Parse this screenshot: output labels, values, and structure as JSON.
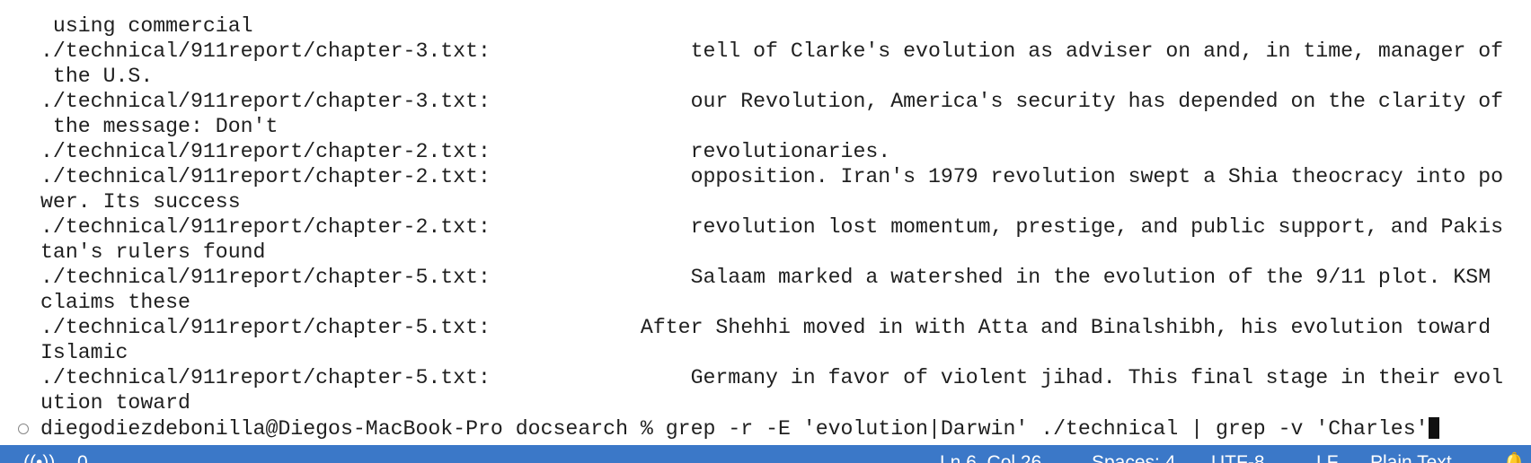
{
  "terminal": {
    "lines": [
      " using commercial",
      "./technical/911report/chapter-3.txt:                tell of Clarke's evolution as adviser on and, in time, manager of",
      " the U.S.",
      "./technical/911report/chapter-3.txt:                our Revolution, America's security has depended on the clarity of",
      " the message: Don't",
      "./technical/911report/chapter-2.txt:                revolutionaries.",
      "./technical/911report/chapter-2.txt:                opposition. Iran's 1979 revolution swept a Shia theocracy into po",
      "wer. Its success",
      "./technical/911report/chapter-2.txt:                revolution lost momentum, prestige, and public support, and Pakis",
      "tan's rulers found",
      "./technical/911report/chapter-5.txt:                Salaam marked a watershed in the evolution of the 9/11 plot. KSM",
      "claims these",
      "./technical/911report/chapter-5.txt:            After Shehhi moved in with Atta and Binalshibh, his evolution toward",
      "Islamic",
      "./technical/911report/chapter-5.txt:                Germany in favor of violent jihad. This final stage in their evol",
      "ution toward"
    ],
    "prompt": {
      "user": "diegodiezdebonilla@Diegos-MacBook-Pro docsearch %",
      "command": "grep -r -E 'evolution|Darwin' ./technical | grep -v 'Charles'"
    }
  },
  "status_bar": {
    "ports": "0",
    "position": "Ln 6, Col 26",
    "spaces": "Spaces: 4",
    "encoding": "UTF-8",
    "eol": "LF",
    "language": "Plain Text"
  }
}
